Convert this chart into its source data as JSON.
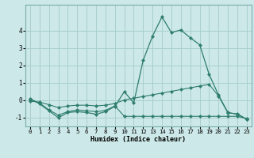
{
  "title": "",
  "xlabel": "Humidex (Indice chaleur)",
  "ylabel": "",
  "background_color": "#cce8e8",
  "grid_color": "#aacfcf",
  "line_color": "#2e7d6e",
  "x_values": [
    0,
    1,
    2,
    3,
    4,
    5,
    6,
    7,
    8,
    9,
    10,
    11,
    12,
    13,
    14,
    15,
    16,
    17,
    18,
    19,
    20,
    21,
    22,
    23
  ],
  "line1": [
    0.1,
    -0.2,
    -0.6,
    -1.0,
    -0.7,
    -0.65,
    -0.7,
    -0.8,
    -0.65,
    -0.35,
    0.5,
    -0.15,
    2.3,
    3.7,
    4.8,
    3.9,
    4.05,
    3.6,
    3.2,
    1.5,
    0.3,
    -0.7,
    -0.8,
    -1.1
  ],
  "line2": [
    0.05,
    -0.15,
    -0.55,
    -0.85,
    -0.65,
    -0.55,
    -0.6,
    -0.65,
    -0.58,
    -0.32,
    -0.92,
    -0.92,
    -0.92,
    -0.92,
    -0.92,
    -0.92,
    -0.92,
    -0.92,
    -0.92,
    -0.92,
    -0.92,
    -0.92,
    -0.92,
    -1.05
  ],
  "line3": [
    -0.05,
    -0.1,
    -0.25,
    -0.42,
    -0.32,
    -0.28,
    -0.28,
    -0.32,
    -0.28,
    -0.18,
    0.02,
    0.12,
    0.22,
    0.32,
    0.42,
    0.52,
    0.62,
    0.72,
    0.82,
    0.92,
    0.25,
    -0.72,
    -0.78,
    -1.08
  ],
  "ylim": [
    -1.5,
    5.5
  ],
  "yticks": [
    -1,
    0,
    1,
    2,
    3,
    4
  ],
  "xticks": [
    0,
    1,
    2,
    3,
    4,
    5,
    6,
    7,
    8,
    9,
    10,
    11,
    12,
    13,
    14,
    15,
    16,
    17,
    18,
    19,
    20,
    21,
    22,
    23
  ]
}
